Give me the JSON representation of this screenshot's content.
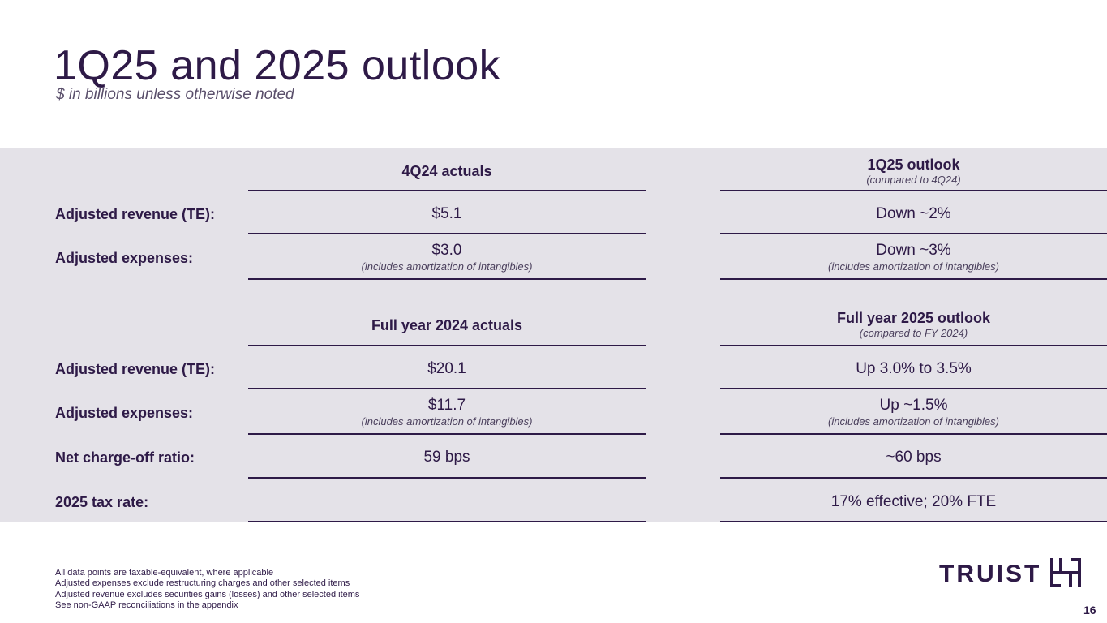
{
  "title": "1Q25 and 2025 outlook",
  "subtitle": "$ in billions unless otherwise noted",
  "section1": {
    "col1_header": "4Q24 actuals",
    "col2_header": "1Q25 outlook",
    "col2_sub": "(compared to 4Q24)",
    "rows": [
      {
        "label": "Adjusted revenue (TE):",
        "actual": "$5.1",
        "outlook": "Down ~2%"
      },
      {
        "label": "Adjusted expenses:",
        "actual": "$3.0",
        "actual_note": "(includes amortization of intangibles)",
        "outlook": "Down ~3%",
        "outlook_note": "(includes amortization of intangibles)"
      }
    ]
  },
  "section2": {
    "col1_header": "Full year 2024 actuals",
    "col2_header": "Full year 2025 outlook",
    "col2_sub": "(compared to FY 2024)",
    "rows": [
      {
        "label": "Adjusted revenue (TE):",
        "actual": "$20.1",
        "outlook": "Up 3.0% to 3.5%"
      },
      {
        "label": "Adjusted expenses:",
        "actual": "$11.7",
        "actual_note": "(includes amortization of intangibles)",
        "outlook": "Up ~1.5%",
        "outlook_note": "(includes amortization of intangibles)"
      },
      {
        "label": "Net charge-off ratio:",
        "actual": "59 bps",
        "outlook": "~60 bps"
      },
      {
        "label": "2025 tax rate:",
        "actual": "",
        "outlook": "17% effective; 20% FTE"
      }
    ]
  },
  "footnotes": [
    "All data points are taxable-equivalent, where applicable",
    "Adjusted expenses exclude restructuring charges and other selected items",
    "Adjusted revenue excludes securities gains (losses) and other selected items",
    "See non-GAAP reconciliations in the appendix"
  ],
  "logo": {
    "text": "TRUIST",
    "icon": "truist-logo-mark"
  },
  "page_number": "16",
  "colors": {
    "brand": "#2e1a47",
    "band": "#e4e2e8"
  }
}
